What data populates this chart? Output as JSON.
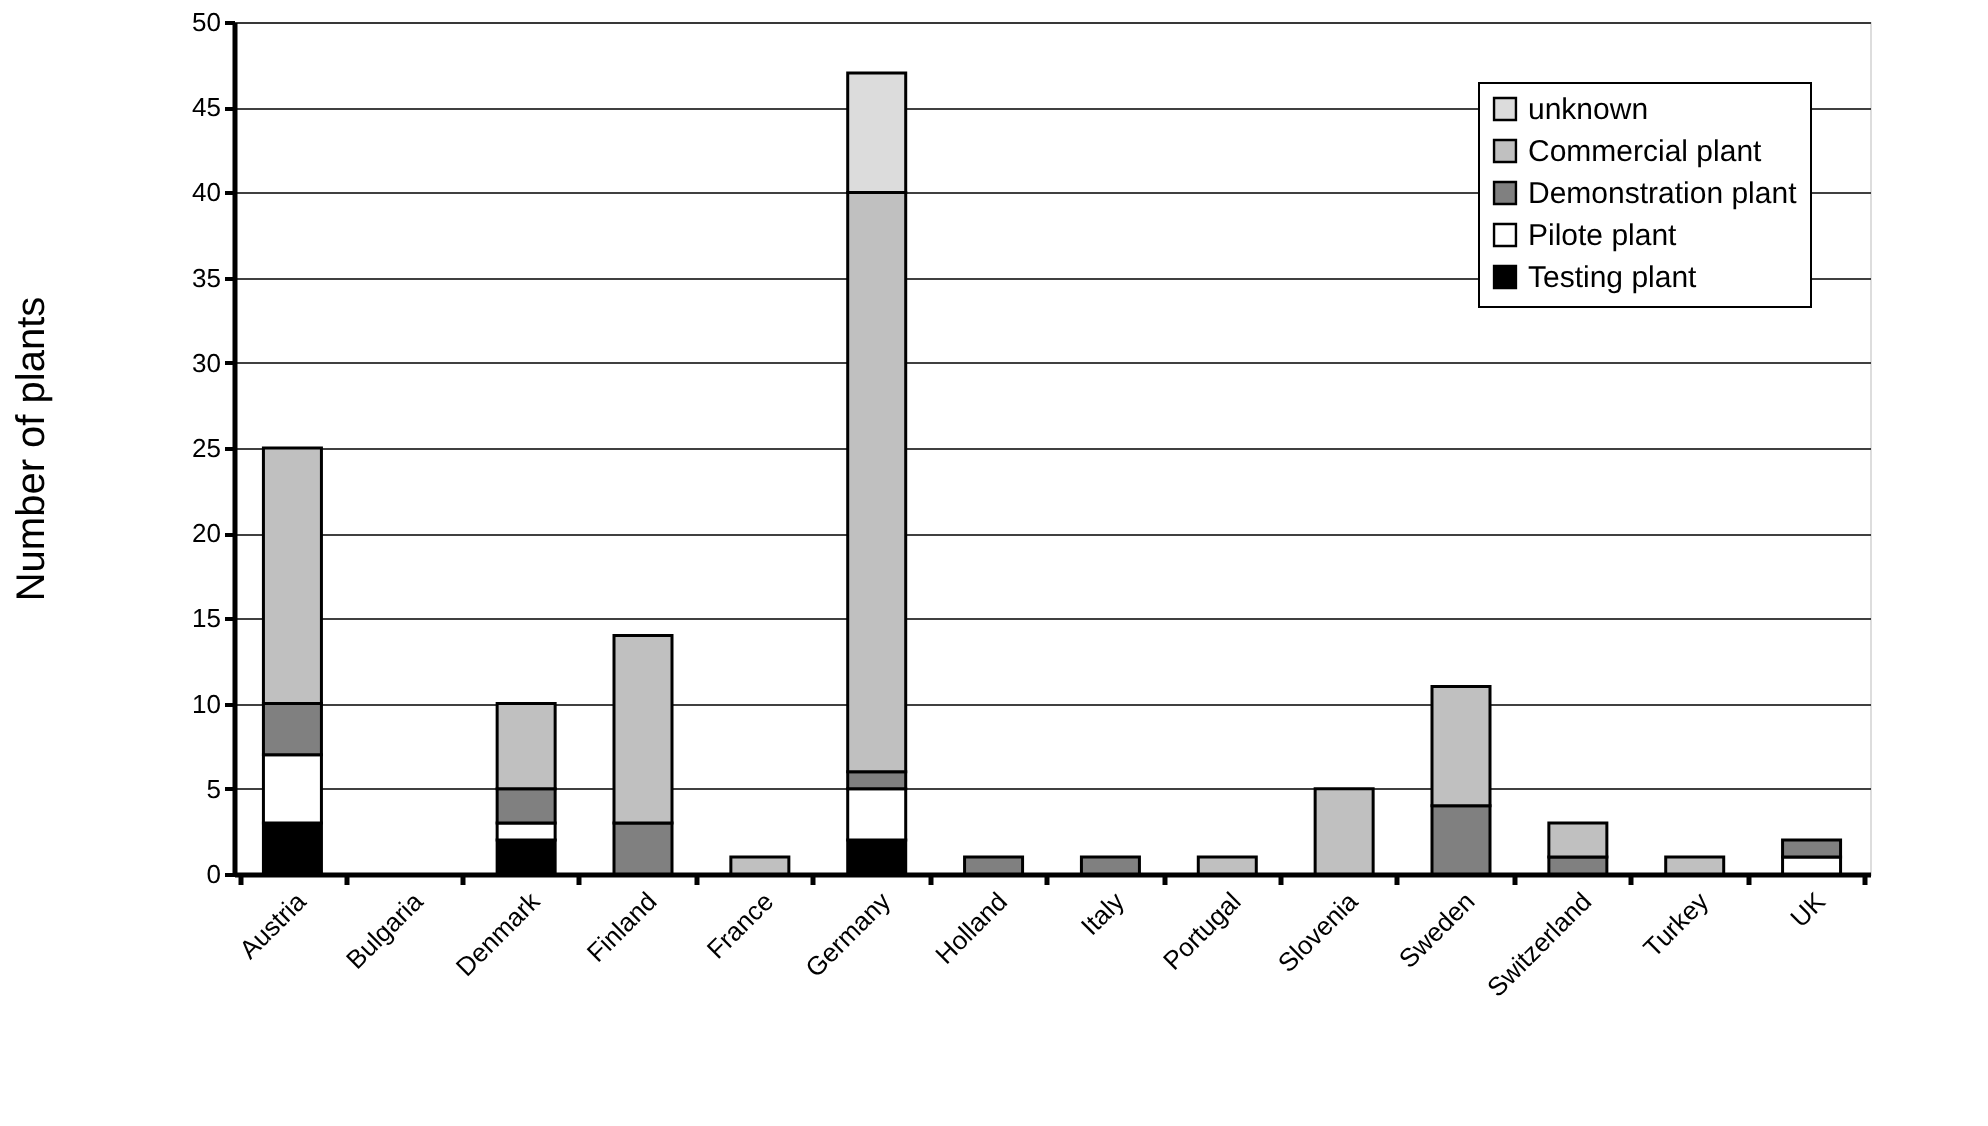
{
  "chart_data": {
    "type": "bar",
    "stacked": true,
    "ylabel": "Number of plants",
    "categories": [
      "Austria",
      "Bulgaria",
      "Denmark",
      "Finland",
      "France",
      "Germany",
      "Holland",
      "Italy",
      "Portugal",
      "Slovenia",
      "Sweden",
      "Switzerland",
      "Turkey",
      "UK"
    ],
    "series": [
      {
        "name": "Testing plant",
        "color": "#000000",
        "values": [
          3,
          0,
          2,
          0,
          0,
          2,
          0,
          0,
          0,
          0,
          0,
          0,
          0,
          0
        ]
      },
      {
        "name": "Pilote plant",
        "color": "#ffffff",
        "values": [
          4,
          0,
          1,
          0,
          0,
          3,
          0,
          0,
          0,
          0,
          0,
          0,
          0,
          1
        ]
      },
      {
        "name": "Demonstration plant",
        "color": "#808080",
        "values": [
          3,
          0,
          2,
          3,
          0,
          1,
          1,
          1,
          0,
          0,
          4,
          1,
          0,
          1
        ]
      },
      {
        "name": "Commercial plant",
        "color": "#c0c0c0",
        "values": [
          15,
          0,
          5,
          11,
          1,
          34,
          0,
          0,
          1,
          5,
          7,
          2,
          1,
          0
        ]
      },
      {
        "name": "unknown",
        "color": "#dcdcdc",
        "values": [
          0,
          0,
          0,
          0,
          0,
          7,
          0,
          0,
          0,
          0,
          0,
          0,
          0,
          0
        ]
      }
    ],
    "ylim": [
      0,
      50
    ],
    "yticks": [
      0,
      5,
      10,
      15,
      20,
      25,
      30,
      35,
      40,
      45,
      50
    ],
    "grid": "y",
    "legend": "top right"
  }
}
